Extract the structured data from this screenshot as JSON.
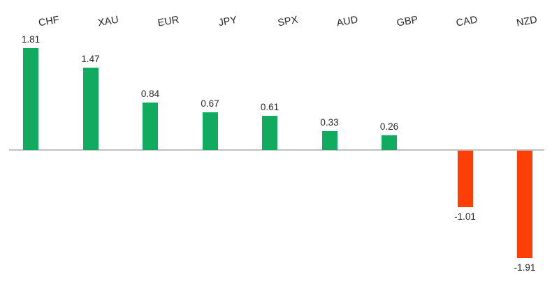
{
  "chart_data": {
    "type": "bar",
    "categories": [
      "CHF",
      "XAU",
      "EUR",
      "JPY",
      "SPX",
      "AUD",
      "GBP",
      "CAD",
      "NZD"
    ],
    "values": [
      1.81,
      1.47,
      0.84,
      0.67,
      0.61,
      0.33,
      0.26,
      -1.01,
      -1.91
    ],
    "value_labels": [
      "1.81",
      "1.47",
      "0.84",
      "0.67",
      "0.61",
      "0.33",
      "0.26",
      "-1.01",
      "-1.91"
    ],
    "series": [
      {
        "name": "positive",
        "values": [
          1.81,
          1.47,
          0.84,
          0.67,
          0.61,
          0.33,
          0.26,
          null,
          null
        ]
      },
      {
        "name": "negative",
        "values": [
          null,
          null,
          null,
          null,
          null,
          null,
          null,
          -1.01,
          -1.91
        ]
      }
    ],
    "title": "",
    "xlabel": "",
    "ylabel": "",
    "ylim": [
      -2.2,
      2.2
    ],
    "grid": false,
    "legend": null,
    "category_label_position": "top",
    "category_label_rotation_deg": -10,
    "colors": {
      "positive_bar": "#10AB5E",
      "negative_bar": "#FC3E07",
      "axis_line": "#BFBFBF",
      "label_text": "#262626",
      "background": "#FFFFFF"
    }
  }
}
